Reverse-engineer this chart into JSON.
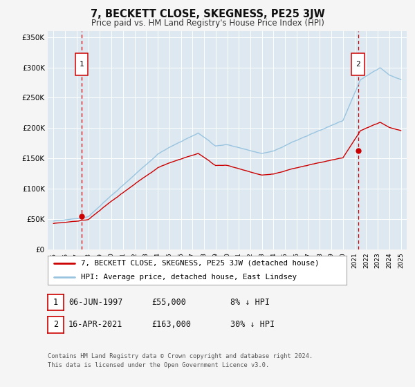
{
  "title": "7, BECKETT CLOSE, SKEGNESS, PE25 3JW",
  "subtitle": "Price paid vs. HM Land Registry's House Price Index (HPI)",
  "background_color": "#f5f5f5",
  "plot_bg_color": "#dde8f0",
  "line_price_color": "#cc0000",
  "line_hpi_color": "#99c4e0",
  "marker_color": "#cc0000",
  "vline_color": "#cc0000",
  "grid_color": "#ffffff",
  "legend_label_price": "7, BECKETT CLOSE, SKEGNESS, PE25 3JW (detached house)",
  "legend_label_hpi": "HPI: Average price, detached house, East Lindsey",
  "sale1_date": "06-JUN-1997",
  "sale1_price": 55000,
  "sale1_label": "8% ↓ HPI",
  "sale2_date": "16-APR-2021",
  "sale2_price": 163000,
  "sale2_label": "30% ↓ HPI",
  "sale1_year": 1997.44,
  "sale2_year": 2021.29,
  "ylim": [
    0,
    360000
  ],
  "xlim": [
    1994.5,
    2025.5
  ],
  "yticks": [
    0,
    50000,
    100000,
    150000,
    200000,
    250000,
    300000,
    350000
  ],
  "ytick_labels": [
    "£0",
    "£50K",
    "£100K",
    "£150K",
    "£200K",
    "£250K",
    "£300K",
    "£350K"
  ],
  "xticks": [
    1995,
    1996,
    1997,
    1998,
    1999,
    2000,
    2001,
    2002,
    2003,
    2004,
    2005,
    2006,
    2007,
    2008,
    2009,
    2010,
    2011,
    2012,
    2013,
    2014,
    2015,
    2016,
    2017,
    2018,
    2019,
    2020,
    2021,
    2022,
    2023,
    2024,
    2025
  ],
  "footnote1": "Contains HM Land Registry data © Crown copyright and database right 2024.",
  "footnote2": "This data is licensed under the Open Government Licence v3.0."
}
